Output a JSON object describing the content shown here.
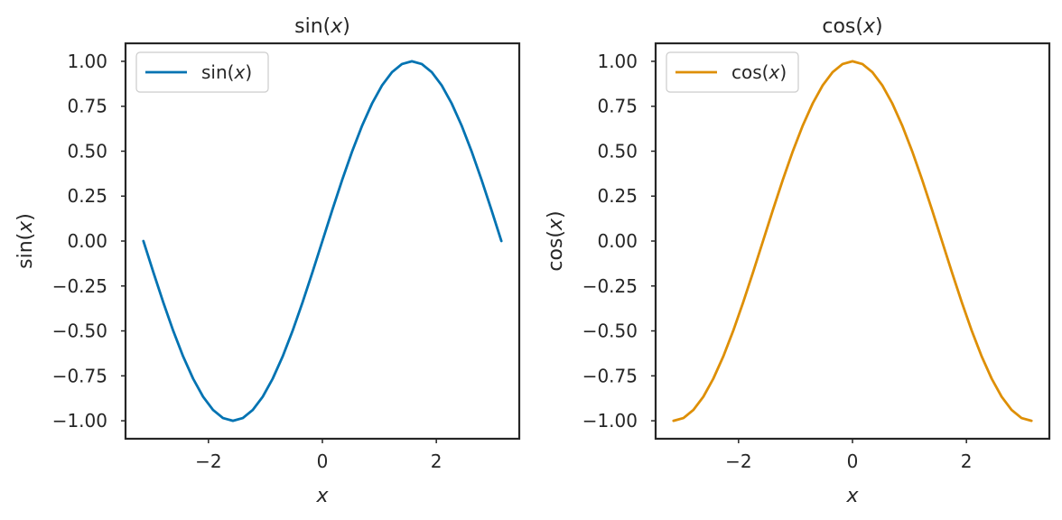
{
  "chart_data": [
    {
      "type": "line",
      "title": "sin(x)",
      "xlabel": "x",
      "ylabel": "sin(x)",
      "xlim": [
        -3.4557,
        3.4557
      ],
      "ylim": [
        -1.1,
        1.1
      ],
      "xticks": [
        -2,
        0,
        2
      ],
      "xtick_labels": [
        "−2",
        "0",
        "2"
      ],
      "yticks": [
        1.0,
        0.75,
        0.5,
        0.25,
        0.0,
        -0.25,
        -0.5,
        -0.75,
        -1.0
      ],
      "ytick_labels": [
        "1.00",
        "0.75",
        "0.50",
        "0.25",
        "0.00",
        "−0.25",
        "−0.50",
        "−0.75",
        "−1.00"
      ],
      "grid": false,
      "legend": "top-left",
      "series": [
        {
          "name": "sin(x)",
          "color": "#0173b2",
          "x": [
            -3.1416,
            -2.9671,
            -2.7925,
            -2.618,
            -2.4435,
            -2.2689,
            -2.0944,
            -1.9199,
            -1.7453,
            -1.5708,
            -1.3963,
            -1.2217,
            -1.0472,
            -0.8727,
            -0.6981,
            -0.5236,
            -0.3491,
            -0.1745,
            0.0,
            0.1745,
            0.3491,
            0.5236,
            0.6981,
            0.8727,
            1.0472,
            1.2217,
            1.3963,
            1.5708,
            1.7453,
            1.9199,
            2.0944,
            2.2689,
            2.4435,
            2.618,
            2.7925,
            2.9671,
            3.1416
          ],
          "y": [
            0.0,
            -0.1736,
            -0.342,
            -0.5,
            -0.6428,
            -0.766,
            -0.866,
            -0.9397,
            -0.9848,
            -1.0,
            -0.9848,
            -0.9397,
            -0.866,
            -0.766,
            -0.6428,
            -0.5,
            -0.342,
            -0.1736,
            0.0,
            0.1736,
            0.342,
            0.5,
            0.6428,
            0.766,
            0.866,
            0.9397,
            0.9848,
            1.0,
            0.9848,
            0.9397,
            0.866,
            0.766,
            0.6428,
            0.5,
            0.342,
            0.1736,
            0.0
          ]
        }
      ]
    },
    {
      "type": "line",
      "title": "cos(x)",
      "xlabel": "x",
      "ylabel": "cos(x)",
      "xlim": [
        -3.4557,
        3.4557
      ],
      "ylim": [
        -1.1,
        1.1
      ],
      "xticks": [
        -2,
        0,
        2
      ],
      "xtick_labels": [
        "−2",
        "0",
        "2"
      ],
      "yticks": [
        1.0,
        0.75,
        0.5,
        0.25,
        0.0,
        -0.25,
        -0.5,
        -0.75,
        -1.0
      ],
      "ytick_labels": [
        "1.00",
        "0.75",
        "0.50",
        "0.25",
        "0.00",
        "−0.25",
        "−0.50",
        "−0.75",
        "−1.00"
      ],
      "grid": false,
      "legend": "top-left",
      "series": [
        {
          "name": "cos(x)",
          "color": "#de8f05",
          "x": [
            -3.1416,
            -2.9671,
            -2.7925,
            -2.618,
            -2.4435,
            -2.2689,
            -2.0944,
            -1.9199,
            -1.7453,
            -1.5708,
            -1.3963,
            -1.2217,
            -1.0472,
            -0.8727,
            -0.6981,
            -0.5236,
            -0.3491,
            -0.1745,
            0.0,
            0.1745,
            0.3491,
            0.5236,
            0.6981,
            0.8727,
            1.0472,
            1.2217,
            1.3963,
            1.5708,
            1.7453,
            1.9199,
            2.0944,
            2.2689,
            2.4435,
            2.618,
            2.7925,
            2.9671,
            3.1416
          ],
          "y": [
            -1.0,
            -0.9848,
            -0.9397,
            -0.866,
            -0.766,
            -0.6428,
            -0.5,
            -0.342,
            -0.1736,
            0.0,
            0.1736,
            0.342,
            0.5,
            0.6428,
            0.766,
            0.866,
            0.9397,
            0.9848,
            1.0,
            0.9848,
            0.9397,
            0.866,
            0.766,
            0.6428,
            0.5,
            0.342,
            0.1736,
            0.0,
            -0.1736,
            -0.342,
            -0.5,
            -0.6428,
            -0.766,
            -0.866,
            -0.9397,
            -0.9848,
            -1.0
          ]
        }
      ]
    }
  ]
}
